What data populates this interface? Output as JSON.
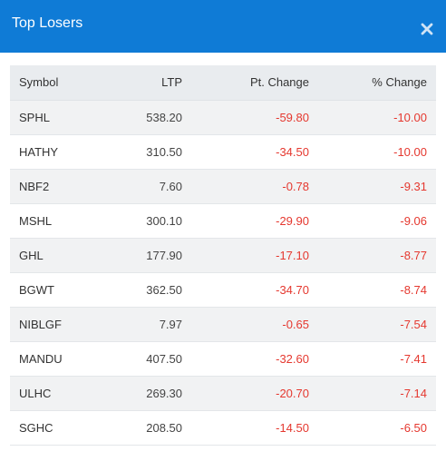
{
  "header": {
    "title": "Top Losers",
    "close_icon": "close-icon"
  },
  "table": {
    "columns": [
      "Symbol",
      "LTP",
      "Pt. Change",
      "% Change"
    ],
    "rows": [
      {
        "symbol": "SPHL",
        "ltp": "538.20",
        "pt_change": "-59.80",
        "pct_change": "-10.00"
      },
      {
        "symbol": "HATHY",
        "ltp": "310.50",
        "pt_change": "-34.50",
        "pct_change": "-10.00"
      },
      {
        "symbol": "NBF2",
        "ltp": "7.60",
        "pt_change": "-0.78",
        "pct_change": "-9.31"
      },
      {
        "symbol": "MSHL",
        "ltp": "300.10",
        "pt_change": "-29.90",
        "pct_change": "-9.06"
      },
      {
        "symbol": "GHL",
        "ltp": "177.90",
        "pt_change": "-17.10",
        "pct_change": "-8.77"
      },
      {
        "symbol": "BGWT",
        "ltp": "362.50",
        "pt_change": "-34.70",
        "pct_change": "-8.74"
      },
      {
        "symbol": "NIBLGF",
        "ltp": "7.97",
        "pt_change": "-0.65",
        "pct_change": "-7.54"
      },
      {
        "symbol": "MANDU",
        "ltp": "407.50",
        "pt_change": "-32.60",
        "pct_change": "-7.41"
      },
      {
        "symbol": "ULHC",
        "ltp": "269.30",
        "pt_change": "-20.70",
        "pct_change": "-7.14"
      },
      {
        "symbol": "SGHC",
        "ltp": "208.50",
        "pt_change": "-14.50",
        "pct_change": "-6.50"
      }
    ]
  },
  "colors": {
    "header_bg": "#0f7bd6",
    "negative": "#e5382f"
  }
}
